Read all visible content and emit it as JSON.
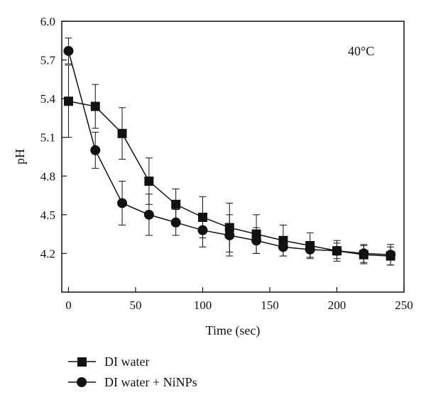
{
  "chart_data": {
    "type": "line",
    "title": "",
    "xlabel": "Time (sec)",
    "ylabel": "pH",
    "annotation": "40°C",
    "xlim": [
      -5,
      250
    ],
    "ylim": [
      3.9,
      6.0
    ],
    "x_ticks": [
      0,
      50,
      100,
      150,
      200,
      250
    ],
    "y_ticks": [
      4.2,
      4.5,
      4.8,
      5.1,
      5.4,
      5.7,
      6.0
    ],
    "x_tick_labels": [
      "0",
      "50",
      "100",
      "150",
      "200",
      "250"
    ],
    "y_tick_labels": [
      "4.2",
      "4.5",
      "4.8",
      "5.1",
      "5.4",
      "5.7",
      "6.0"
    ],
    "grid": false,
    "legend_position": "bottom-left, outside",
    "series": [
      {
        "name": "DI water",
        "marker": "square",
        "color": "#111111",
        "x": [
          0,
          20,
          40,
          60,
          80,
          100,
          120,
          140,
          160,
          180,
          200,
          220,
          240
        ],
        "y": [
          5.38,
          5.34,
          5.13,
          4.76,
          4.58,
          4.48,
          4.4,
          4.35,
          4.3,
          4.26,
          4.22,
          4.19,
          4.18
        ],
        "err": [
          0.28,
          0.17,
          0.2,
          0.18,
          0.12,
          0.16,
          0.19,
          0.15,
          0.12,
          0.1,
          0.08,
          0.07,
          0.07
        ]
      },
      {
        "name": "DI water + NiNPs",
        "marker": "circle",
        "color": "#111111",
        "x": [
          0,
          20,
          40,
          60,
          80,
          100,
          120,
          140,
          160,
          180,
          200,
          220,
          240
        ],
        "y": [
          5.77,
          5.0,
          4.59,
          4.5,
          4.44,
          4.38,
          4.34,
          4.3,
          4.25,
          4.23,
          4.22,
          4.2,
          4.19
        ],
        "err": [
          0.1,
          0.14,
          0.17,
          0.16,
          0.1,
          0.13,
          0.16,
          0.1,
          0.07,
          0.06,
          0.06,
          0.07,
          0.08
        ]
      }
    ]
  }
}
